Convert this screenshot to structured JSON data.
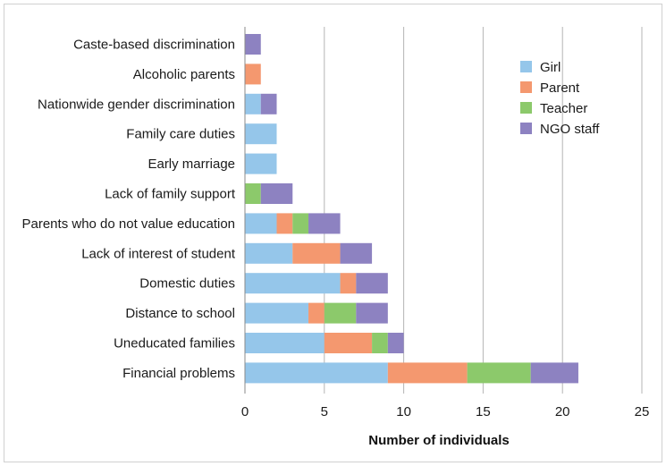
{
  "chart_data": {
    "type": "bar",
    "orientation": "horizontal",
    "stacked": true,
    "categories": [
      "Caste-based discrimination",
      "Alcoholic parents",
      "Nationwide gender discrimination",
      "Family care duties",
      "Early marriage",
      "Lack of family support",
      "Parents who do not value education",
      "Lack of interest of student",
      "Domestic duties",
      "Distance to school",
      "Uneducated families",
      "Financial problems"
    ],
    "series": [
      {
        "name": "Girl",
        "color": "#95c6ea",
        "values": [
          0,
          0,
          1,
          2,
          2,
          0,
          2,
          3,
          6,
          4,
          5,
          9
        ]
      },
      {
        "name": "Parent",
        "color": "#f4986f",
        "values": [
          0,
          1,
          0,
          0,
          0,
          0,
          1,
          3,
          1,
          1,
          3,
          5
        ]
      },
      {
        "name": "Teacher",
        "color": "#8cc96b",
        "values": [
          0,
          0,
          0,
          0,
          0,
          1,
          1,
          0,
          0,
          2,
          1,
          4
        ]
      },
      {
        "name": "NGO staff",
        "color": "#8d82c1",
        "values": [
          1,
          0,
          1,
          0,
          0,
          2,
          2,
          2,
          2,
          2,
          1,
          3
        ]
      }
    ],
    "xlabel": "Number of individuals",
    "xlim": [
      0,
      25
    ],
    "xticks": [
      "0",
      "5",
      "10",
      "15",
      "20",
      "25"
    ],
    "xtick_values": [
      0,
      5,
      10,
      15,
      20,
      25
    ],
    "grid": "vertical",
    "legend_position": "top-right"
  }
}
